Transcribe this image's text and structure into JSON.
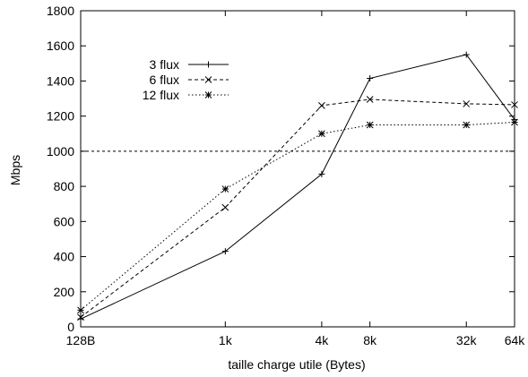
{
  "chart_data": {
    "type": "line",
    "xlabel": "taille charge utile (Bytes)",
    "ylabel": "Mbps",
    "x_scale": "log2",
    "categories": [
      "128B",
      "1k",
      "4k",
      "8k",
      "32k",
      "64k"
    ],
    "x": [
      128,
      1024,
      4096,
      8192,
      32768,
      65536
    ],
    "ylim": [
      0,
      1800
    ],
    "yticks": [
      0,
      200,
      400,
      600,
      800,
      1000,
      1200,
      1400,
      1600,
      1800
    ],
    "grid": false,
    "legend_position": "top-left",
    "reference_line": {
      "y": 1000,
      "style": "dashed"
    },
    "series": [
      {
        "name": "3 flux",
        "style": "solid",
        "marker": "plus",
        "values": [
          45,
          430,
          870,
          1415,
          1550,
          1180
        ]
      },
      {
        "name": "6 flux",
        "style": "dashed",
        "marker": "cross",
        "values": [
          55,
          680,
          1260,
          1295,
          1270,
          1265
        ]
      },
      {
        "name": "12 flux",
        "style": "dotted",
        "marker": "star",
        "values": [
          95,
          785,
          1100,
          1150,
          1150,
          1165
        ]
      }
    ]
  }
}
